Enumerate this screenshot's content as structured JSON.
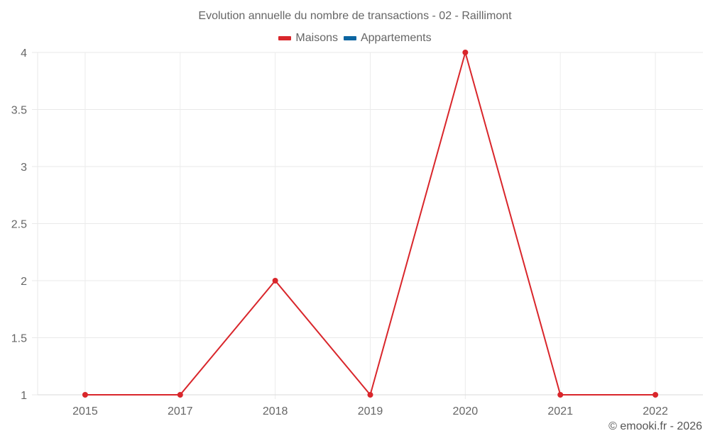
{
  "chart_data": {
    "type": "line",
    "title": "Evolution annuelle du nombre de transactions - 02 - Raillimont",
    "categories": [
      "2015",
      "2017",
      "2018",
      "2019",
      "2020",
      "2021",
      "2022"
    ],
    "series": [
      {
        "name": "Maisons",
        "color": "#d9262b",
        "values": [
          1,
          1,
          2,
          1,
          4,
          1,
          1
        ]
      },
      {
        "name": "Appartements",
        "color": "#0b65a1",
        "values": []
      }
    ],
    "xlabel": "",
    "ylabel": "",
    "ylim": [
      1,
      4
    ],
    "yticks": [
      "1",
      "1.5",
      "2",
      "2.5",
      "3",
      "3.5",
      "4"
    ],
    "grid": true,
    "legend_position": "top"
  },
  "header": {
    "title": "Evolution annuelle du nombre de transactions - 02 - Raillimont"
  },
  "legend": {
    "items": [
      {
        "label": "Maisons",
        "color": "#d9262b"
      },
      {
        "label": "Appartements",
        "color": "#0b65a1"
      }
    ]
  },
  "footer": {
    "credit": "© emooki.fr - 2026"
  }
}
